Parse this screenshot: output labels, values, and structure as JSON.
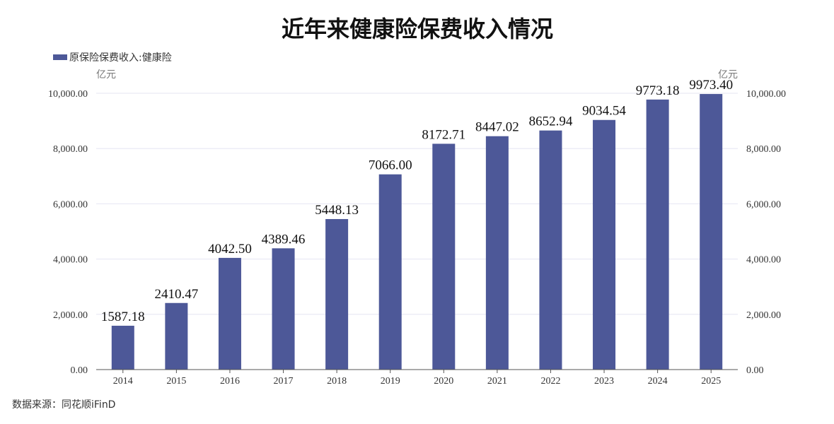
{
  "chart_data": {
    "type": "bar",
    "title": "近年来健康险保费收入情况",
    "categories": [
      "2014",
      "2015",
      "2016",
      "2017",
      "2018",
      "2019",
      "2020",
      "2021",
      "2022",
      "2023",
      "2024",
      "2025"
    ],
    "series": [
      {
        "name": "原保险保费收入:健康险",
        "values": [
          1587.18,
          2410.47,
          4042.5,
          4389.46,
          5448.13,
          7066.0,
          8172.71,
          8447.02,
          8652.94,
          9034.54,
          9773.18,
          9973.4
        ],
        "color": "#4d5898"
      }
    ],
    "data_labels": [
      "1587.18",
      "2410.47",
      "4042.50",
      "4389.46",
      "5448.13",
      "7066.00",
      "8172.71",
      "8447.02",
      "8652.94",
      "9034.54",
      "9773.18",
      "9973.40"
    ],
    "ylabel_left": "亿元",
    "ylabel_right": "亿元",
    "ylim": [
      0,
      10000
    ],
    "yticks": [
      "0.00",
      "2,000.00",
      "4,000.00",
      "6,000.00",
      "8,000.00",
      "10,000.00"
    ],
    "grid": true,
    "legend_position": "top-left",
    "source": "数据来源：同花顺iFinD"
  }
}
